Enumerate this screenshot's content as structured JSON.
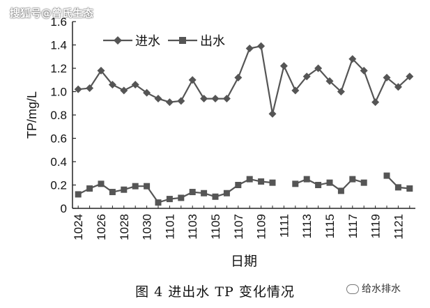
{
  "watermark_top": "搜狐号@曾氏生态",
  "caption": "图 4   进出水 TP 变化情况",
  "watermark_bottom": "给水排水",
  "colors": {
    "series": "#555555",
    "axis": "#222222"
  },
  "chart_data": {
    "type": "line",
    "xlabel": "日期",
    "ylabel": "TP/mg/L",
    "ylim": [
      0,
      1.6
    ],
    "yticks": [
      "0",
      "0.2",
      "0.4",
      "0.6",
      "0.8",
      "1.0",
      "1.2",
      "1.4",
      "1.6"
    ],
    "xticks": [
      "1024",
      "1026",
      "1028",
      "1030",
      "1101",
      "1103",
      "1105",
      "1107",
      "1109",
      "1111",
      "1113",
      "1115",
      "1117",
      "1119",
      "1121"
    ],
    "legend_position": "top-left",
    "series": [
      {
        "name": "进水",
        "marker": "diamond",
        "values": [
          1.02,
          1.03,
          1.18,
          1.06,
          1.01,
          1.06,
          0.99,
          0.94,
          0.91,
          0.92,
          1.1,
          0.94,
          0.94,
          0.94,
          1.12,
          1.37,
          1.39,
          0.81,
          1.22,
          1.01,
          1.13,
          1.2,
          1.09,
          1.0,
          1.28,
          1.18,
          0.91,
          1.12,
          1.04,
          1.13
        ]
      },
      {
        "name": "出水",
        "marker": "square",
        "values": [
          0.12,
          0.17,
          0.21,
          0.14,
          0.16,
          0.19,
          0.19,
          0.05,
          0.08,
          0.09,
          0.14,
          0.13,
          0.1,
          0.13,
          0.2,
          0.25,
          0.23,
          0.22,
          null,
          0.21,
          0.25,
          0.2,
          0.22,
          0.15,
          0.25,
          0.22,
          null,
          0.28,
          0.18,
          0.17
        ]
      }
    ]
  }
}
